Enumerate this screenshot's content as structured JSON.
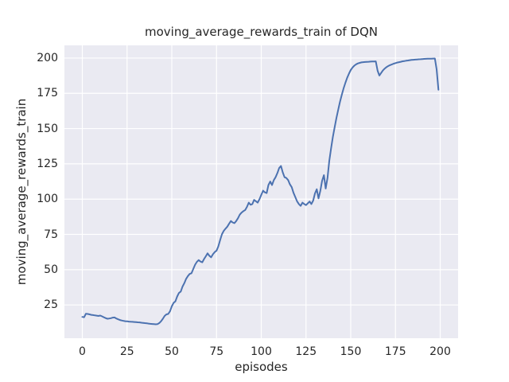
{
  "chart_data": {
    "type": "line",
    "title": "moving_average_rewards_train of DQN",
    "xlabel": "episodes",
    "ylabel": "moving_average_rewards_train",
    "xticks": [
      0,
      25,
      50,
      75,
      100,
      125,
      150,
      175,
      200
    ],
    "yticks": [
      25,
      50,
      75,
      100,
      125,
      150,
      175,
      200
    ],
    "xlim": [
      -10,
      210
    ],
    "ylim": [
      1.4,
      209.0
    ],
    "grid": true,
    "legend": "none",
    "series_name": "moving_average_rewards_train",
    "x": [
      0,
      1,
      2,
      3,
      4,
      5,
      6,
      7,
      8,
      9,
      10,
      11,
      12,
      13,
      14,
      15,
      16,
      17,
      18,
      19,
      20,
      21,
      22,
      23,
      24,
      25,
      26,
      27,
      28,
      29,
      30,
      31,
      32,
      33,
      34,
      35,
      36,
      37,
      38,
      39,
      40,
      41,
      42,
      43,
      44,
      45,
      46,
      47,
      48,
      49,
      50,
      51,
      52,
      53,
      54,
      55,
      56,
      57,
      58,
      59,
      60,
      61,
      62,
      63,
      64,
      65,
      66,
      67,
      68,
      69,
      70,
      71,
      72,
      73,
      74,
      75,
      76,
      77,
      78,
      79,
      80,
      81,
      82,
      83,
      84,
      85,
      86,
      87,
      88,
      89,
      90,
      91,
      92,
      93,
      94,
      95,
      96,
      97,
      98,
      99,
      100,
      101,
      102,
      103,
      104,
      105,
      106,
      107,
      108,
      109,
      110,
      111,
      112,
      113,
      114,
      115,
      116,
      117,
      118,
      119,
      120,
      121,
      122,
      123,
      124,
      125,
      126,
      127,
      128,
      129,
      130,
      131,
      132,
      133,
      134,
      135,
      136,
      137,
      138,
      139,
      140,
      141,
      142,
      143,
      144,
      145,
      146,
      147,
      148,
      149,
      150,
      151,
      152,
      153,
      154,
      155,
      156,
      157,
      158,
      159,
      160,
      161,
      162,
      163,
      164,
      165,
      166,
      167,
      168,
      169,
      170,
      171,
      172,
      173,
      174,
      175,
      176,
      177,
      178,
      179,
      180,
      181,
      182,
      183,
      184,
      185,
      186,
      187,
      188,
      189,
      190,
      191,
      192,
      193,
      194,
      195,
      196,
      197,
      198,
      199
    ],
    "y": [
      16.5,
      16.3,
      18.8,
      18.6,
      18.3,
      18.0,
      17.8,
      17.6,
      17.4,
      17.2,
      17.5,
      16.9,
      16.3,
      15.7,
      15.2,
      15.4,
      15.6,
      16.0,
      16.1,
      15.4,
      14.8,
      14.3,
      14.0,
      13.7,
      13.5,
      13.4,
      13.2,
      13.1,
      13.0,
      12.9,
      12.8,
      12.7,
      12.6,
      12.4,
      12.3,
      12.1,
      12.0,
      11.8,
      11.6,
      11.5,
      11.4,
      11.3,
      11.4,
      12.2,
      13.4,
      15.2,
      17.2,
      18.3,
      18.6,
      20.5,
      24.0,
      26.5,
      27.5,
      31.0,
      33.5,
      34.5,
      38.0,
      40.5,
      43.5,
      45.5,
      47.0,
      47.5,
      50.5,
      53.5,
      55.5,
      56.8,
      55.8,
      55.2,
      57.5,
      59.5,
      61.6,
      59.8,
      58.8,
      61.0,
      62.5,
      63.5,
      66.5,
      71.0,
      75.0,
      77.5,
      79.0,
      80.5,
      82.5,
      84.5,
      83.5,
      83.0,
      84.5,
      86.5,
      89.0,
      90.5,
      91.5,
      92.3,
      94.5,
      97.5,
      96.0,
      96.5,
      99.5,
      98.5,
      97.5,
      100.0,
      103.0,
      106.0,
      104.8,
      104.3,
      110.0,
      112.5,
      110.0,
      113.5,
      115.5,
      118.5,
      122.0,
      123.5,
      119.0,
      115.5,
      115.0,
      113.5,
      110.5,
      108.5,
      104.5,
      101.5,
      98.5,
      96.5,
      95.2,
      97.5,
      96.5,
      95.8,
      97.0,
      98.3,
      96.5,
      99.0,
      104.0,
      107.0,
      100.5,
      106.0,
      113.0,
      117.0,
      107.5,
      115.0,
      127.0,
      136.0,
      144.0,
      151.0,
      157.5,
      163.5,
      169.0,
      174.0,
      178.5,
      182.5,
      186.0,
      189.0,
      191.5,
      193.3,
      194.6,
      195.6,
      196.2,
      196.6,
      196.9,
      197.1,
      197.2,
      197.3,
      197.4,
      197.5,
      197.55,
      197.6,
      197.65,
      191.0,
      187.6,
      189.5,
      191.3,
      192.6,
      193.6,
      194.4,
      195.0,
      195.5,
      196.0,
      196.4,
      196.8,
      197.1,
      197.4,
      197.7,
      197.9,
      198.1,
      198.3,
      198.5,
      198.65,
      198.8,
      198.9,
      199.0,
      199.1,
      199.2,
      199.3,
      199.4,
      199.45,
      199.5,
      199.55,
      199.6,
      199.65,
      199.7,
      192.0,
      177.5
    ]
  },
  "colors": {
    "line": "#4C72B0",
    "plot_background": "#EAEAF2",
    "gridline": "#FFFFFF",
    "text": "#262626",
    "figure_background": "#FFFFFF"
  }
}
